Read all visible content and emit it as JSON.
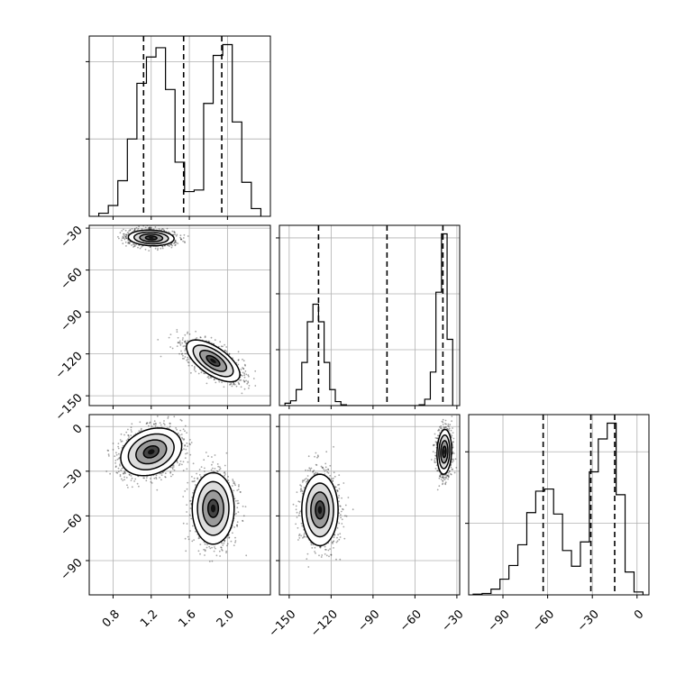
{
  "chart_data": {
    "type": "corner",
    "parameters": [
      {
        "label": "",
        "range": [
          0.55,
          2.45
        ],
        "ticks": [
          0.8,
          1.2,
          1.6,
          2.0
        ],
        "tick_labels": [
          "0.8",
          "1.2",
          "1.6",
          "2.0"
        ]
      },
      {
        "label": "",
        "range": [
          -157,
          -28
        ],
        "ticks": [
          -150,
          -120,
          -90,
          -60,
          -30
        ],
        "tick_labels": [
          "−150",
          "−120",
          "−90",
          "−60",
          "−30"
        ]
      },
      {
        "label": "",
        "range": [
          -113,
          8
        ],
        "ticks": [
          -90,
          -60,
          -30,
          0
        ],
        "tick_labels": [
          "−90",
          "−60",
          "−30",
          "0"
        ]
      }
    ],
    "grid": true,
    "histograms": [
      {
        "param": 0,
        "bin_edges": [
          0.65,
          0.75,
          0.85,
          0.95,
          1.05,
          1.15,
          1.25,
          1.35,
          1.45,
          1.55,
          1.65,
          1.75,
          1.85,
          1.95,
          2.05,
          2.15,
          2.25,
          2.35
        ],
        "counts": [
          0.2,
          0.7,
          2.3,
          5.0,
          8.6,
          10.3,
          10.9,
          8.2,
          3.5,
          1.6,
          1.7,
          7.3,
          10.4,
          11.1,
          6.1,
          2.2,
          0.5
        ],
        "quantiles": [
          1.12,
          1.54,
          1.94
        ]
      },
      {
        "param": 1,
        "bin_edges": [
          -153,
          -149,
          -145,
          -141,
          -137,
          -133,
          -129,
          -125,
          -121,
          -117,
          -113,
          -109,
          -105,
          -101,
          -97,
          -93,
          -89,
          -85,
          -81,
          -77,
          -73,
          -69,
          -65,
          -61,
          -57,
          -53,
          -49,
          -45,
          -41,
          -37,
          -33
        ],
        "counts": [
          0.3,
          0.6,
          2.0,
          5.4,
          10.5,
          12.7,
          10.5,
          5.4,
          2.0,
          0.5,
          0.1,
          0,
          0,
          0,
          0,
          0,
          0,
          0,
          0,
          0,
          0,
          0,
          0,
          0,
          0.1,
          0.8,
          4.2,
          14.2,
          21.5,
          8.3
        ],
        "quantiles": [
          -129,
          -80,
          -40
        ]
      },
      {
        "param": 2,
        "bin_edges": [
          -110,
          -104,
          -98,
          -92,
          -86,
          -80,
          -74,
          -68,
          -62,
          -56,
          -50,
          -44,
          -38,
          -32,
          -26,
          -20,
          -14,
          -8,
          -2,
          4
        ],
        "counts": [
          0.1,
          0.2,
          0.8,
          2.2,
          4.1,
          7.0,
          11.5,
          14.5,
          14.8,
          11.3,
          6.2,
          4.0,
          7.4,
          17.2,
          21.8,
          24.0,
          14.0,
          3.2,
          0.4
        ],
        "quantiles": [
          -63,
          -31,
          -15
        ]
      }
    ],
    "scatter_panels": [
      {
        "x_param": 0,
        "y_param": 1,
        "clusters": [
          {
            "mean": [
              1.2,
              -37
            ],
            "std": [
              0.12,
              2.8
            ],
            "rho": -0.1,
            "n": 1400
          },
          {
            "mean": [
              1.85,
              -125
            ],
            "std": [
              0.14,
              7.5
            ],
            "rho": -0.65,
            "n": 1400
          }
        ]
      },
      {
        "x_param": 0,
        "y_param": 2,
        "clusters": [
          {
            "mean": [
              1.2,
              -17
            ],
            "std": [
              0.16,
              8.0
            ],
            "rho": 0.25,
            "n": 1400
          },
          {
            "mean": [
              1.85,
              -55
            ],
            "std": [
              0.11,
              12.0
            ],
            "rho": 0.0,
            "n": 1400
          }
        ]
      },
      {
        "x_param": 1,
        "y_param": 2,
        "clusters": [
          {
            "mean": [
              -128,
              -56
            ],
            "std": [
              6.5,
              12.0
            ],
            "rho": 0.0,
            "n": 1400
          },
          {
            "mean": [
              -39,
              -17
            ],
            "std": [
              2.6,
              7.5
            ],
            "rho": 0.1,
            "n": 1400
          }
        ]
      }
    ]
  }
}
